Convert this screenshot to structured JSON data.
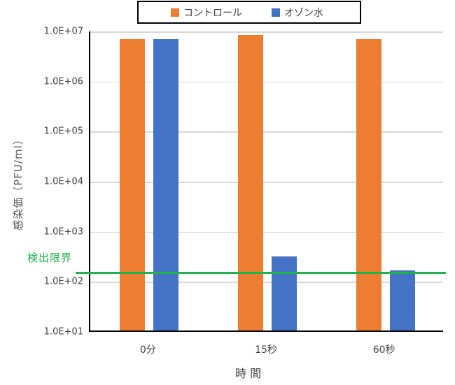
{
  "chart_data": {
    "type": "bar",
    "title": "",
    "xlabel": "時間",
    "ylabel": "感染価（PFU/ml）",
    "y_scale": "log10",
    "ylim": [
      10,
      10000000
    ],
    "yticks": [
      "1.0E+07",
      "1.0E+06",
      "1.0E+05",
      "1.0E+04",
      "1.0E+03",
      "1.0E+02",
      "1.0E+01"
    ],
    "categories": [
      "0分",
      "15秒",
      "60秒"
    ],
    "series": [
      {
        "id": "control",
        "name": "コントロール",
        "color": "#ED7D31",
        "values": [
          6500000,
          8000000,
          6500000
        ]
      },
      {
        "id": "ozone",
        "name": "オゾン水",
        "color": "#4472C4",
        "values": [
          6500000,
          300,
          160
        ]
      }
    ],
    "detection_limit": {
      "label": "検出限界",
      "value": 150,
      "color": "#22B14C"
    },
    "legend_position": "top",
    "grid": true,
    "gridline_color": "#D9D9D9",
    "axis_color": "#000000",
    "tick_label_color": "#404040"
  }
}
